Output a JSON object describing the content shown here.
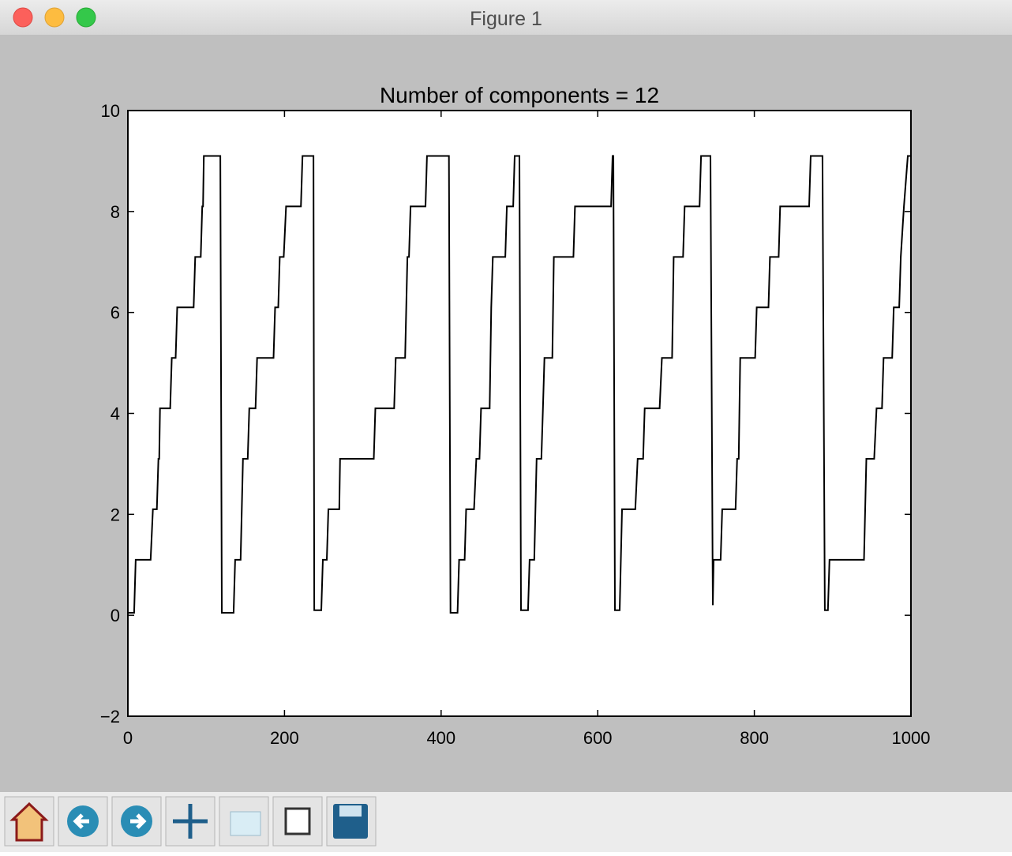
{
  "window": {
    "title": "Figure 1"
  },
  "chart_data": {
    "type": "line",
    "title": "Number of components = 12",
    "color": "#000000",
    "x": [
      0,
      8,
      10,
      29,
      32,
      37,
      39,
      40,
      41,
      54,
      56,
      61,
      63,
      84,
      86,
      93,
      95,
      96,
      97,
      118,
      120,
      135,
      137,
      144,
      147,
      153,
      155,
      163,
      165,
      186,
      188,
      192,
      194,
      199,
      202,
      221,
      223,
      237,
      238,
      247,
      249,
      254,
      256,
      270,
      271,
      314,
      316,
      340,
      342,
      354,
      357,
      359,
      361,
      380,
      382,
      410,
      412,
      421,
      423,
      430,
      432,
      442,
      445,
      449,
      451,
      462,
      464,
      466,
      482,
      484,
      492,
      494,
      500,
      502,
      511,
      513,
      519,
      522,
      528,
      530,
      532,
      542,
      544,
      569,
      571,
      617,
      619,
      620,
      622,
      628,
      631,
      648,
      651,
      658,
      660,
      679,
      682,
      695,
      697,
      709,
      711,
      730,
      732,
      744,
      747,
      748,
      757,
      759,
      776,
      778,
      780,
      782,
      801,
      803,
      818,
      820,
      831,
      833,
      870,
      872,
      887,
      890,
      894,
      896,
      940,
      943,
      953,
      956,
      963,
      965,
      976,
      978,
      985,
      987,
      991,
      996,
      1000
    ],
    "values": [
      0.05,
      0.05,
      1.1,
      1.1,
      2.1,
      2.1,
      3.1,
      3.1,
      4.1,
      4.1,
      5.1,
      5.1,
      6.1,
      6.1,
      7.1,
      7.1,
      8.1,
      8.1,
      9.1,
      9.1,
      0.05,
      0.05,
      1.1,
      1.1,
      3.1,
      3.1,
      4.1,
      4.1,
      5.1,
      5.1,
      6.1,
      6.1,
      7.1,
      7.1,
      8.1,
      8.1,
      9.1,
      9.1,
      0.1,
      0.1,
      1.1,
      1.1,
      2.1,
      2.1,
      3.1,
      3.1,
      4.1,
      4.1,
      5.1,
      5.1,
      7.1,
      7.1,
      8.1,
      8.1,
      9.1,
      9.1,
      0.05,
      0.05,
      1.1,
      1.1,
      2.1,
      2.1,
      3.1,
      3.1,
      4.1,
      4.1,
      6.1,
      7.1,
      7.1,
      8.1,
      8.1,
      9.1,
      9.1,
      0.1,
      0.1,
      1.1,
      1.1,
      3.1,
      3.1,
      4.1,
      5.1,
      5.1,
      7.1,
      7.1,
      8.1,
      8.1,
      9.1,
      9.1,
      0.1,
      0.1,
      2.1,
      2.1,
      3.1,
      3.1,
      4.1,
      4.1,
      5.1,
      5.1,
      7.1,
      7.1,
      8.1,
      8.1,
      9.1,
      9.1,
      0.2,
      1.1,
      1.1,
      2.1,
      2.1,
      3.1,
      3.1,
      5.1,
      5.1,
      6.1,
      6.1,
      7.1,
      7.1,
      8.1,
      8.1,
      9.1,
      9.1,
      0.1,
      0.1,
      1.1,
      1.1,
      3.1,
      3.1,
      4.1,
      4.1,
      5.1,
      5.1,
      6.1,
      6.1,
      7.1,
      8.1,
      9.1,
      9.1
    ],
    "xlim": [
      0,
      1000
    ],
    "xticks": [
      0,
      200,
      400,
      600,
      800,
      1000
    ],
    "ylim": [
      -2,
      10
    ],
    "yticks": [
      {
        "value": -2,
        "label": "−2"
      },
      0,
      2,
      4,
      6,
      8,
      10
    ]
  }
}
